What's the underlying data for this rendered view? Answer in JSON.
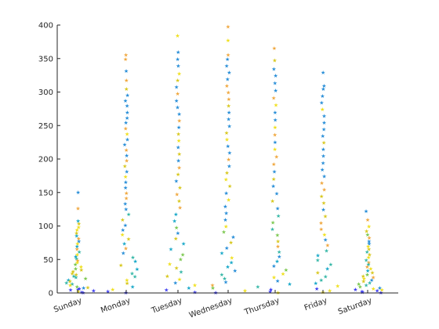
{
  "chart_data": {
    "type": "scatter",
    "title": "",
    "xlabel": "",
    "ylabel": "",
    "categories": [
      "Sunday",
      "Monday",
      "Tuesday",
      "Wednesday",
      "Thursday",
      "Friday",
      "Saturday"
    ],
    "ylim": [
      0,
      400
    ],
    "yticks": [
      0,
      50,
      100,
      150,
      200,
      250,
      300,
      350,
      400
    ],
    "grid": false,
    "legend": "none",
    "marker": "star",
    "colors": [
      "#4040f0",
      "#2a8fd8",
      "#1aa9c9",
      "#38b8a8",
      "#7cc850",
      "#d8c820",
      "#f0e020",
      "#f0a840"
    ],
    "series": [
      {
        "values": [
          151,
          127,
          108,
          104,
          99,
          95,
          90,
          86,
          82,
          78,
          74,
          70,
          66,
          62,
          58,
          55,
          52,
          49,
          46,
          43,
          40,
          37,
          35,
          33,
          30,
          28,
          26,
          24,
          22,
          20,
          18,
          16,
          14,
          12,
          10,
          9,
          8,
          7,
          6,
          5,
          4,
          3,
          2,
          1
        ]
      },
      {
        "values": [
          356,
          350,
          332,
          318,
          305,
          296,
          288,
          280,
          270,
          262,
          255,
          246,
          238,
          230,
          222,
          214,
          206,
          198,
          190,
          182,
          174,
          166,
          158,
          150,
          142,
          134,
          126,
          118,
          110,
          102,
          95,
          88,
          81,
          74,
          67,
          60,
          54,
          48,
          42,
          36,
          30,
          25,
          20,
          15,
          10,
          6,
          3,
          1
        ]
      },
      {
        "values": [
          385,
          360,
          350,
          340,
          328,
          318,
          308,
          298,
          288,
          278,
          268,
          258,
          248,
          238,
          228,
          218,
          208,
          198,
          188,
          178,
          168,
          158,
          148,
          138,
          128,
          118,
          108,
          98,
          90,
          82,
          74,
          66,
          58,
          51,
          44,
          38,
          32,
          26,
          21,
          16,
          12,
          8,
          5,
          2
        ]
      },
      {
        "values": [
          398,
          378,
          356,
          350,
          340,
          330,
          320,
          310,
          300,
          290,
          280,
          270,
          260,
          250,
          240,
          230,
          220,
          210,
          200,
          190,
          180,
          170,
          160,
          150,
          140,
          130,
          120,
          110,
          100,
          92,
          84,
          76,
          68,
          60,
          53,
          46,
          40,
          34,
          28,
          22,
          17,
          12,
          8,
          4,
          1
        ]
      },
      {
        "values": [
          366,
          348,
          335,
          325,
          314,
          303,
          292,
          281,
          270,
          259,
          248,
          237,
          226,
          215,
          204,
          193,
          182,
          171,
          160,
          149,
          138,
          127,
          116,
          106,
          96,
          87,
          78,
          70,
          62,
          55,
          48,
          41,
          35,
          29,
          24,
          19,
          14,
          10,
          6,
          3,
          1
        ]
      },
      {
        "values": [
          330,
          310,
          305,
          295,
          285,
          275,
          265,
          255,
          245,
          235,
          225,
          215,
          205,
          195,
          185,
          175,
          165,
          155,
          145,
          135,
          125,
          115,
          105,
          96,
          88,
          80,
          72,
          64,
          57,
          50,
          43,
          37,
          31,
          25,
          20,
          15,
          11,
          7,
          4,
          2
        ]
      },
      {
        "values": [
          123,
          110,
          100,
          93,
          88,
          83,
          78,
          74,
          70,
          66,
          62,
          58,
          54,
          50,
          46,
          43,
          40,
          37,
          34,
          31,
          28,
          26,
          24,
          22,
          20,
          18,
          16,
          14,
          12,
          10,
          8,
          7,
          6,
          5,
          4,
          3,
          2,
          1
        ]
      }
    ]
  }
}
